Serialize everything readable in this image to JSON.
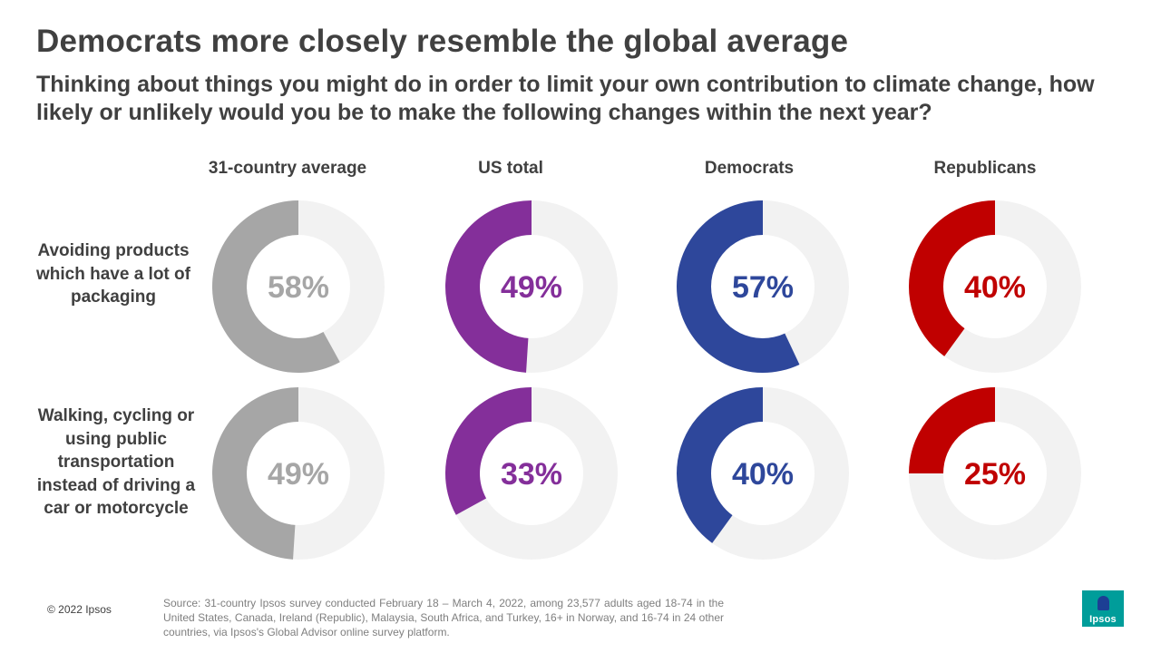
{
  "title": "Democrats more closely resemble the global average",
  "subtitle": "Thinking about things you might do in order to limit your own contribution to climate change, how likely or unlikely would you be to make the following changes within the next year?",
  "chart_data": {
    "type": "pie",
    "subtype": "donut",
    "unit": "%",
    "remainder_color": "#f2f2f2",
    "columns": [
      {
        "name": "31-country average",
        "color": "#a6a6a6"
      },
      {
        "name": "US total",
        "color": "#842f9a"
      },
      {
        "name": "Democrats",
        "color": "#2e479b"
      },
      {
        "name": "Republicans",
        "color": "#c00000"
      }
    ],
    "rows": [
      {
        "label": "Avoiding products which have a lot of packaging",
        "values": [
          58,
          49,
          57,
          40
        ]
      },
      {
        "label": "Walking, cycling or using public transportation instead of driving a car or motorcycle",
        "values": [
          49,
          33,
          40,
          25
        ]
      }
    ]
  },
  "footer": {
    "copyright": "© 2022 Ipsos",
    "source": "Source: 31-country Ipsos survey conducted February 18 – March 4, 2022, among 23,577 adults aged 18-74 in the United States, Canada, Ireland (Republic), Malaysia, South Africa, and Turkey, 16+ in Norway, and 16-74 in 24 other countries, via Ipsos's Global Advisor online survey platform.",
    "logo_text": "Ipsos"
  }
}
